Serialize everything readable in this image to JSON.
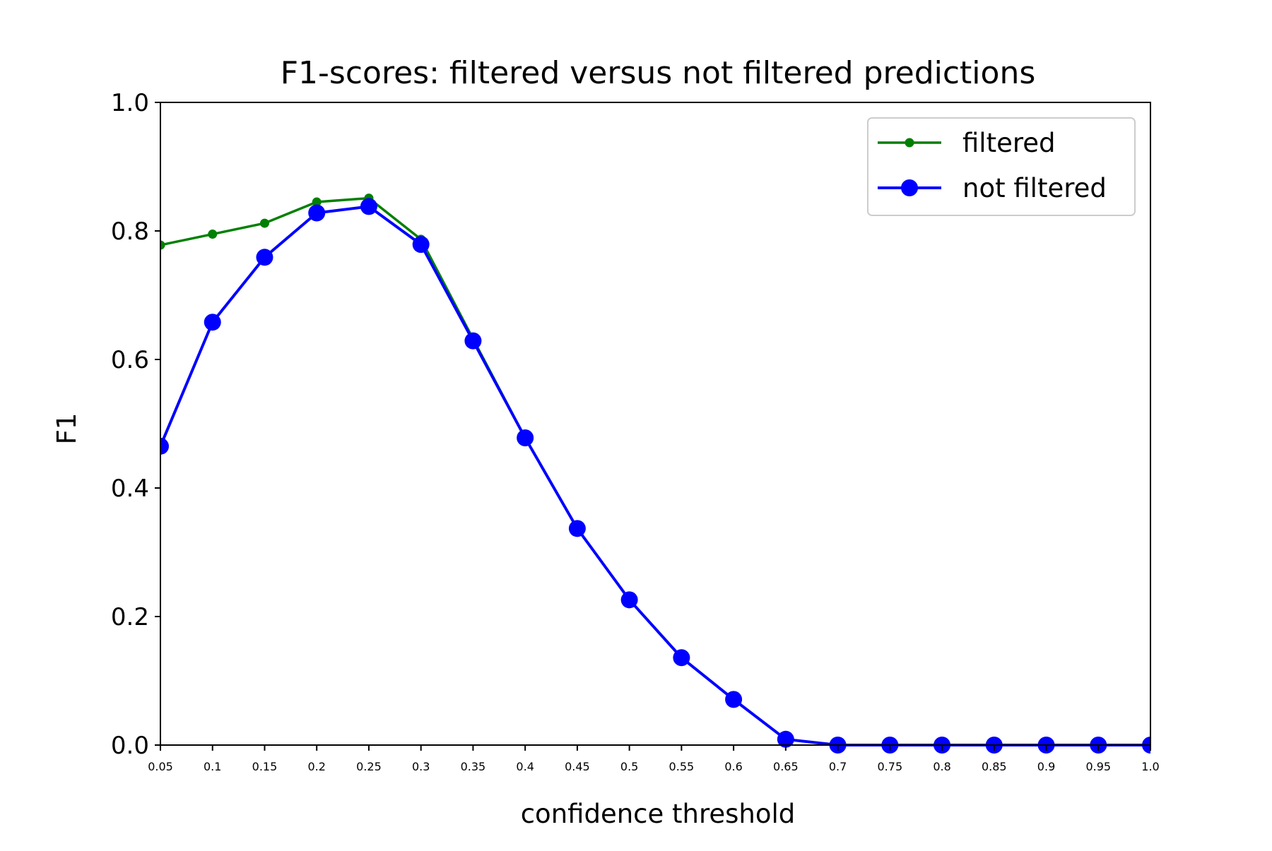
{
  "chart_data": {
    "type": "line",
    "title": "F1-scores: filtered versus not filtered predictions",
    "xlabel": "confidence threshold",
    "ylabel": "F1",
    "x": [
      0.05,
      0.1,
      0.15,
      0.2,
      0.25,
      0.3,
      0.35,
      0.4,
      0.45,
      0.5,
      0.55,
      0.6,
      0.65,
      0.7,
      0.75,
      0.8,
      0.85,
      0.9,
      0.95,
      1.0
    ],
    "x_tick_labels": [
      "0.05",
      "0.1",
      "0.15",
      "0.2",
      "0.25",
      "0.3",
      "0.35",
      "0.4",
      "0.45",
      "0.5",
      "0.55",
      "0.6",
      "0.65",
      "0.7",
      "0.75",
      "0.8",
      "0.85",
      "0.9",
      "0.95",
      "1.0"
    ],
    "y_tick_labels": [
      "0.0",
      "0.2",
      "0.4",
      "0.6",
      "0.8",
      "1.0"
    ],
    "y_ticks": [
      0,
      0.2,
      0.4,
      0.6,
      0.8,
      1.0
    ],
    "xlim": [
      0.05,
      1.0
    ],
    "ylim": [
      0,
      1.0
    ],
    "grid": false,
    "legend_position": "top-right",
    "series": [
      {
        "name": "filtered",
        "color": "#008000",
        "marker": "small-dot",
        "values": [
          0.778,
          0.795,
          0.812,
          0.845,
          0.851,
          0.787,
          0.632,
          0.478,
          0.337,
          0.226,
          0.136,
          0.071,
          0.009,
          0.0,
          0.0,
          0.0,
          0.0,
          0.0,
          0.0,
          0.0
        ]
      },
      {
        "name": "not filtered",
        "color": "#0000ff",
        "marker": "large-dot",
        "values": [
          0.465,
          0.658,
          0.759,
          0.828,
          0.838,
          0.779,
          0.629,
          0.478,
          0.337,
          0.226,
          0.136,
          0.071,
          0.009,
          0.0,
          0.0,
          0.0,
          0.0,
          0.0,
          0.0,
          0.0
        ]
      }
    ]
  }
}
